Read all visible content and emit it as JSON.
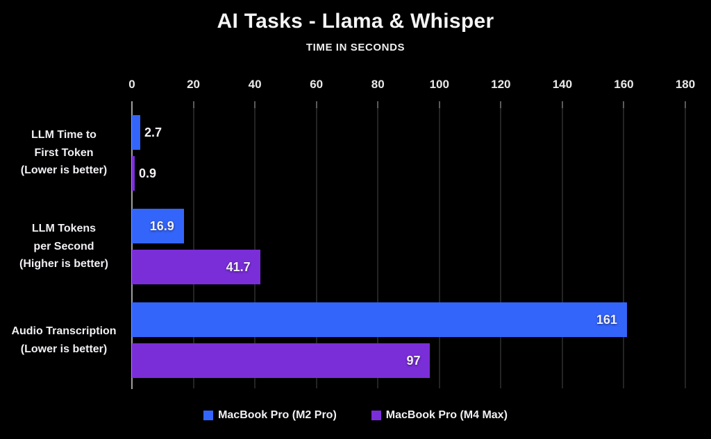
{
  "page": {
    "background_color": "#000000",
    "text_color": "#f2f2f2"
  },
  "chart_data": {
    "type": "bar",
    "orientation": "horizontal",
    "title": "AI Tasks - Llama & Whisper",
    "subtitle": "TIME IN SECONDS",
    "categories": [
      "LLM Time to\nFirst Token\n(Lower is better)",
      "LLM Tokens\nper Second\n(Higher is better)",
      "Audio Transcription\n(Lower is better)"
    ],
    "series": [
      {
        "name": "MacBook Pro (M2 Pro)",
        "color": "#3465fa",
        "values": [
          2.7,
          16.9,
          161
        ]
      },
      {
        "name": "MacBook Pro (M4 Max)",
        "color": "#7a2ed8",
        "values": [
          0.9,
          41.7,
          97
        ]
      }
    ],
    "value_labels": [
      [
        "2.7",
        "16.9",
        "161"
      ],
      [
        "0.9",
        "41.7",
        "97"
      ]
    ],
    "axis": {
      "min": 0,
      "max": 180,
      "step": 20,
      "position": "top"
    },
    "grid": true,
    "legend_position": "bottom",
    "colors": {
      "gridline": "#242424",
      "axis_line": "#a0a0a0",
      "tick": "#5a5a5a"
    }
  }
}
